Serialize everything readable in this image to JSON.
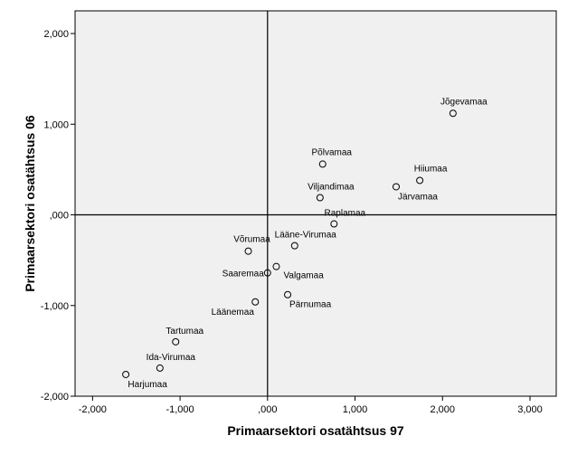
{
  "chart_data": {
    "type": "scatter",
    "title": "",
    "xlabel": "Primaarsektori osatähtsus 97",
    "ylabel": "Primaarsektori osatähtsus 06",
    "xlim": [
      -2.2,
      3.3
    ],
    "ylim": [
      -2.0,
      2.25
    ],
    "xticks": [
      -2,
      -1,
      0,
      1,
      2,
      3
    ],
    "yticks": [
      -2,
      -1,
      0,
      1,
      2
    ],
    "xtick_labels": [
      "-2,000",
      "-1,000",
      ",000",
      "1,000",
      "2,000",
      "3,000"
    ],
    "ytick_labels": [
      "-2,000",
      "-1,000",
      ",000",
      "1,000",
      "2,000"
    ],
    "reference_lines": {
      "x": 0,
      "y": 0
    },
    "grid": false,
    "plot_background": "#f0f0f0",
    "marker_color": "#000000",
    "points": [
      {
        "label": "Jõgevamaa",
        "x": 2.12,
        "y": 1.12
      },
      {
        "label": "Põlvamaa",
        "x": 0.63,
        "y": 0.56
      },
      {
        "label": "Hiiumaa",
        "x": 1.74,
        "y": 0.38
      },
      {
        "label": "Järvamaa",
        "x": 1.47,
        "y": 0.31
      },
      {
        "label": "Viljandimaa",
        "x": 0.6,
        "y": 0.19
      },
      {
        "label": "Raplamaa",
        "x": 0.76,
        "y": -0.1
      },
      {
        "label": "Lääne-Virumaa",
        "x": 0.31,
        "y": -0.34
      },
      {
        "label": "Võrumaa",
        "x": -0.22,
        "y": -0.4
      },
      {
        "label": "Valgamaa",
        "x": 0.1,
        "y": -0.57
      },
      {
        "label": "Saaremaa",
        "x": 0.0,
        "y": -0.64
      },
      {
        "label": "Pärnumaa",
        "x": 0.23,
        "y": -0.88
      },
      {
        "label": "Läänemaa",
        "x": -0.14,
        "y": -0.96
      },
      {
        "label": "Tartumaa",
        "x": -1.05,
        "y": -1.4
      },
      {
        "label": "Ida-Virumaa",
        "x": -1.23,
        "y": -1.69
      },
      {
        "label": "Harjumaa",
        "x": -1.62,
        "y": -1.76
      }
    ]
  }
}
